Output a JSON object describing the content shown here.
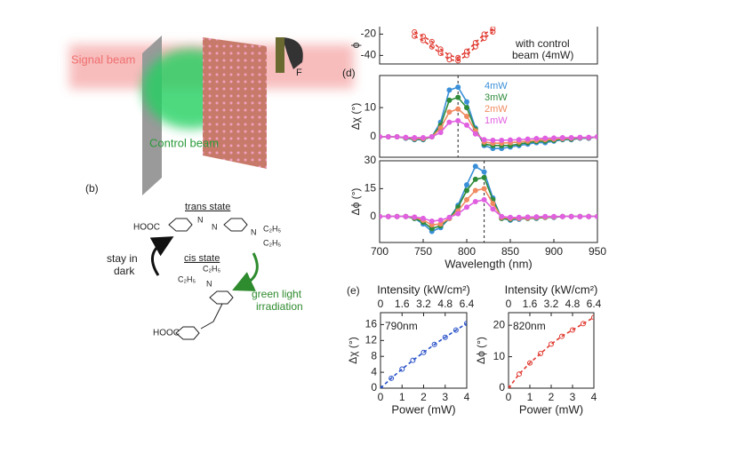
{
  "labels": {
    "signal_beam": "Signal beam",
    "control_beam": "Control beam",
    "filter": "F",
    "panel_b": "(b)",
    "panel_d": "(d)",
    "panel_e": "(e)",
    "trans_state": "trans state",
    "cis_state": "cis state",
    "stay_in": "stay in",
    "dark": "dark",
    "green_light": "green light",
    "irradiation": "irradiation",
    "hooc_1": "HOOC",
    "hooc_2": "HOOC",
    "n_1": "N",
    "n_2": "N",
    "n_3": "N",
    "n_4": "N",
    "c2h5_1": "C₂H₅",
    "c2h5_2": "C₂H₅",
    "c2h5_3": "C₂H₅",
    "c2h5_4": "C₂H₅"
  },
  "chart_data": [
    {
      "type": "line",
      "ylabel": "ϕ",
      "xlim": [
        700,
        950
      ],
      "ylim": [
        -48,
        -13
      ],
      "yticks": [
        -20,
        -40
      ],
      "x": [
        740,
        750,
        760,
        770,
        780,
        790,
        800,
        810,
        820,
        830
      ],
      "annotation": [
        "with control",
        "beam (4mW)"
      ],
      "series": [
        {
          "color": "#e03a30",
          "dash": true,
          "values": [
            -22,
            -26,
            -32,
            -38,
            -44,
            -45,
            -40,
            -32,
            -24,
            -18
          ]
        },
        {
          "color": "#e03a30",
          "dash": true,
          "values": [
            -18,
            -22,
            -27,
            -34,
            -40,
            -42,
            -36,
            -28,
            -20,
            -15
          ]
        }
      ]
    },
    {
      "type": "line",
      "ylabel": "Δχ (°)",
      "xlim": [
        700,
        950
      ],
      "ylim": [
        -7,
        21
      ],
      "yticks": [
        0,
        10
      ],
      "vline": 790,
      "x": [
        700,
        710,
        720,
        730,
        740,
        750,
        760,
        770,
        780,
        790,
        800,
        810,
        820,
        830,
        840,
        850,
        860,
        870,
        880,
        890,
        900,
        910,
        920,
        930,
        940,
        950
      ],
      "series": [
        {
          "name": "4mW",
          "color": "#3a8fd8",
          "values": [
            0,
            0,
            0,
            -0.5,
            -1,
            -1,
            0,
            5,
            16,
            17,
            12,
            3,
            -3,
            -4,
            -4,
            -3.5,
            -3,
            -2.5,
            -2,
            -2,
            -1.5,
            -1,
            -1,
            -0.5,
            -0.5,
            0
          ]
        },
        {
          "name": "3mW",
          "color": "#2e8b3a",
          "values": [
            0,
            0,
            0,
            -0.4,
            -0.8,
            -0.8,
            0,
            4,
            12.5,
            13.5,
            10,
            2.5,
            -2.5,
            -3,
            -3,
            -3,
            -2.5,
            -2,
            -1.6,
            -1.5,
            -1.2,
            -0.8,
            -0.8,
            -0.4,
            -0.4,
            0
          ]
        },
        {
          "name": "2mW",
          "color": "#f08a60",
          "values": [
            0,
            0,
            0,
            -0.3,
            -0.6,
            -0.6,
            0,
            3,
            8.5,
            9.5,
            7,
            2,
            -1.8,
            -2.2,
            -2.2,
            -2,
            -1.8,
            -1.5,
            -1.2,
            -1,
            -0.8,
            -0.6,
            -0.5,
            -0.3,
            -0.3,
            0
          ]
        },
        {
          "name": "1mW",
          "color": "#e060e0",
          "values": [
            0,
            0,
            0,
            -0.2,
            -0.3,
            -0.3,
            0,
            1.5,
            5,
            5.5,
            4,
            1,
            -1,
            -1.2,
            -1.2,
            -1.1,
            -1,
            -0.8,
            -0.6,
            -0.5,
            -0.4,
            -0.3,
            -0.3,
            -0.2,
            -0.2,
            0
          ]
        }
      ]
    },
    {
      "type": "line",
      "ylabel": "Δϕ (°)",
      "xlabel": "Wavelength (nm)",
      "xlim": [
        700,
        950
      ],
      "xticks": [
        700,
        750,
        800,
        850,
        900,
        950
      ],
      "ylim": [
        -14,
        30
      ],
      "yticks": [
        0,
        15,
        30
      ],
      "vline": 820,
      "x": [
        700,
        710,
        720,
        730,
        740,
        750,
        760,
        770,
        780,
        790,
        800,
        810,
        820,
        830,
        840,
        850,
        860,
        870,
        880,
        890,
        900,
        910,
        920,
        930,
        940,
        950
      ],
      "series": [
        {
          "color": "#3a8fd8",
          "values": [
            0,
            0,
            0,
            0,
            -1,
            -4,
            -8,
            -6,
            -1,
            6,
            17,
            27,
            24,
            10,
            -1,
            -2,
            -1.5,
            -1,
            -1,
            -0.5,
            -0.5,
            0,
            0,
            0,
            0,
            0
          ]
        },
        {
          "color": "#2e8b3a",
          "values": [
            0,
            0,
            0,
            0,
            -1,
            -3,
            -6.5,
            -5,
            -1,
            5,
            14,
            20,
            21,
            9,
            -1,
            -1.5,
            -1,
            -1,
            -0.8,
            -0.5,
            -0.3,
            0,
            0,
            0,
            0,
            0
          ]
        },
        {
          "color": "#f08a60",
          "values": [
            0,
            0,
            0,
            0,
            -0.5,
            -2,
            -4.5,
            -4,
            -1,
            3,
            9,
            14,
            15,
            7,
            -0.5,
            -1,
            -1,
            -0.8,
            -0.5,
            -0.3,
            -0.2,
            0,
            0,
            0,
            0,
            0
          ]
        },
        {
          "color": "#e060e0",
          "values": [
            0,
            0,
            0,
            0,
            -0.3,
            -1,
            -2.5,
            -2,
            -0.5,
            1.5,
            5,
            8,
            9,
            4,
            0,
            -0.5,
            -0.5,
            -0.3,
            -0.2,
            0,
            0,
            0,
            0,
            0,
            0,
            0
          ]
        }
      ]
    },
    {
      "type": "line",
      "ylabel": "Δχ (°)",
      "xlabel": "Power (mW)",
      "x2label": "Intensity (kW/cm²)",
      "annotation": [
        "790nm"
      ],
      "xlim": [
        0,
        4
      ],
      "xticks": [
        0,
        1,
        2,
        3,
        4
      ],
      "x2lim": [
        0,
        6.4
      ],
      "x2ticks": [
        0,
        {
          "value": 1.6,
          "label": "1.6"
        },
        {
          "value": 3.2,
          "label": "3.2"
        },
        {
          "value": 4.8,
          "label": "4.8"
        },
        6.4
      ],
      "ylim": [
        0,
        19
      ],
      "yticks": [
        0,
        4,
        8,
        12,
        16
      ],
      "x": [
        0,
        0.5,
        1,
        1.5,
        2,
        2.5,
        3,
        3.5,
        4
      ],
      "series": [
        {
          "color": "#2850c8",
          "dash": true,
          "values": [
            0,
            2.5,
            4.8,
            7,
            9,
            11,
            12.8,
            14.6,
            16.3
          ]
        }
      ]
    },
    {
      "type": "line",
      "ylabel": "Δϕ (°)",
      "xlabel": "Power (mW)",
      "x2label": "Intensity (kW/cm²)",
      "annotation": [
        "820nm"
      ],
      "xlim": [
        0,
        4
      ],
      "xticks": [
        0,
        1,
        2,
        3,
        4
      ],
      "x2lim": [
        0,
        6.4
      ],
      "x2ticks": [
        0,
        {
          "value": 1.6,
          "label": "1.6"
        },
        {
          "value": 3.2,
          "label": "3.2"
        },
        {
          "value": 4.8,
          "label": "4.8"
        },
        6.4
      ],
      "ylim": [
        0,
        24
      ],
      "yticks": [
        0,
        10,
        20
      ],
      "x": [
        0,
        0.5,
        1,
        1.5,
        2,
        2.5,
        3,
        3.5,
        4
      ],
      "series": [
        {
          "color": "#e03a30",
          "dash": true,
          "values": [
            0,
            4.5,
            8,
            11,
            14,
            16.5,
            18.5,
            20.5,
            22.5
          ]
        }
      ]
    }
  ]
}
